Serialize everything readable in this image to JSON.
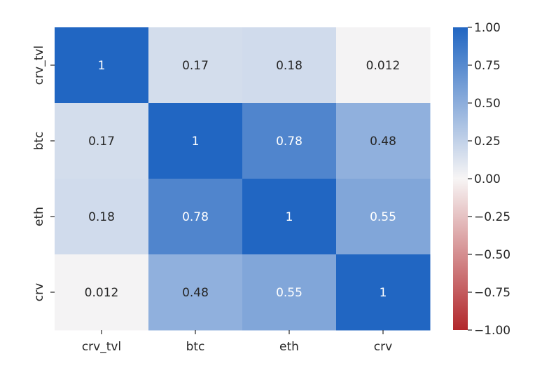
{
  "chart_data": {
    "type": "heatmap",
    "title": "",
    "xlabel": "",
    "ylabel": "",
    "x_labels": [
      "crv_tvl",
      "btc",
      "eth",
      "crv"
    ],
    "y_labels": [
      "crv_tvl",
      "btc",
      "eth",
      "crv"
    ],
    "values": [
      [
        1,
        0.17,
        0.18,
        0.012
      ],
      [
        0.17,
        1,
        0.78,
        0.48
      ],
      [
        0.18,
        0.78,
        1,
        0.55
      ],
      [
        0.012,
        0.48,
        0.55,
        1
      ]
    ],
    "annotations": [
      [
        "1",
        "0.17",
        "0.18",
        "0.012"
      ],
      [
        "0.17",
        "1",
        "0.78",
        "0.48"
      ],
      [
        "0.18",
        "0.78",
        "1",
        "0.55"
      ],
      [
        "0.012",
        "0.48",
        "0.55",
        "1"
      ]
    ],
    "vmin": -1.0,
    "vmax": 1.0,
    "colormap": {
      "low": "#b2272b",
      "mid": "#f7f5f5",
      "high": "#2166c2"
    },
    "colorbar": {
      "ticks": [
        1.0,
        0.75,
        0.5,
        0.25,
        0.0,
        -0.25,
        -0.5,
        -0.75,
        -1.0
      ],
      "tick_labels": [
        "1.00",
        "0.75",
        "0.50",
        "0.25",
        "0.00",
        "−0.25",
        "−0.50",
        "−0.75",
        "−1.00"
      ]
    },
    "grid": false,
    "legend": "colorbar-right"
  }
}
